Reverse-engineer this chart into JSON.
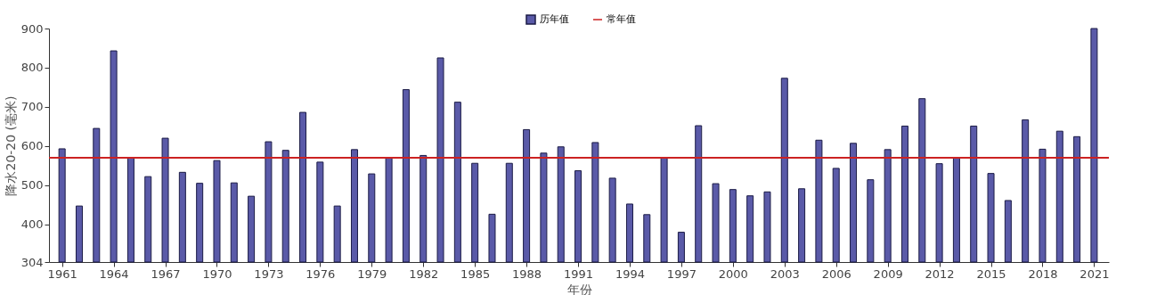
{
  "chart_data": {
    "type": "bar",
    "x": [
      1961,
      1962,
      1963,
      1964,
      1965,
      1966,
      1967,
      1968,
      1969,
      1970,
      1971,
      1972,
      1973,
      1974,
      1975,
      1976,
      1977,
      1978,
      1979,
      1980,
      1981,
      1982,
      1983,
      1984,
      1985,
      1986,
      1987,
      1988,
      1989,
      1990,
      1991,
      1992,
      1993,
      1994,
      1995,
      1996,
      1997,
      1998,
      1999,
      2000,
      2001,
      2002,
      2003,
      2004,
      2005,
      2006,
      2007,
      2008,
      2009,
      2010,
      2011,
      2012,
      2013,
      2014,
      2015,
      2016,
      2017,
      2018,
      2019,
      2020,
      2021
    ],
    "series": [
      {
        "name": "历年值",
        "color": "#5a5aa8",
        "values": [
          593,
          447,
          645,
          843,
          570,
          522,
          620,
          533,
          505,
          563,
          506,
          472,
          611,
          589,
          686,
          559,
          447,
          591,
          529,
          569,
          744,
          576,
          825,
          712,
          556,
          426,
          556,
          642,
          582,
          598,
          537,
          609,
          518,
          452,
          425,
          570,
          380,
          652,
          504,
          489,
          473,
          483,
          773,
          491,
          615,
          543,
          607,
          514,
          591,
          651,
          721,
          555,
          569,
          651,
          530,
          461,
          667,
          592,
          638,
          624,
          900
        ]
      }
    ],
    "xlabel": "年份",
    "ylabel": "降水20-20 (毫米)",
    "xlim": [
      1960.5,
      2021.6
    ],
    "xticks": [
      1961,
      1964,
      1967,
      1970,
      1973,
      1976,
      1979,
      1982,
      1985,
      1988,
      1991,
      1994,
      1997,
      2000,
      2003,
      2006,
      2009,
      2012,
      2015,
      2018,
      2021
    ],
    "ylim": [
      304,
      900
    ],
    "yticks": [
      304,
      400,
      500,
      600,
      700,
      800,
      900
    ],
    "ref_lines": [
      {
        "axis": "y",
        "value": 570,
        "label": "常年值",
        "color": "#cc2222"
      }
    ],
    "legend": "top",
    "grid": false
  }
}
